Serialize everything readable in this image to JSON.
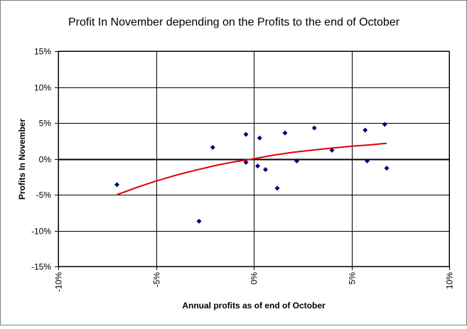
{
  "chart_data": {
    "type": "scatter",
    "title": "Profit In November depending on the Profits to the end of October",
    "xlabel": "Annual profits as of end of October",
    "ylabel": "Profits In November",
    "xlim": [
      -0.1,
      0.1
    ],
    "ylim": [
      -0.15,
      0.15
    ],
    "x_ticks": [
      -0.1,
      -0.05,
      0.0,
      0.05,
      0.1
    ],
    "x_tick_labels": [
      "-10%",
      "-5%",
      "0%",
      "5%",
      "10%"
    ],
    "y_ticks": [
      0.15,
      0.1,
      0.05,
      0.0,
      -0.05,
      -0.1,
      -0.15
    ],
    "y_tick_labels": [
      "15%",
      "10%",
      "5%",
      "0%",
      "-5%",
      "-10%",
      "-15%"
    ],
    "grid": true,
    "legend": "none",
    "colors": {
      "points": "#000080",
      "trend": "#e00000",
      "grid": "#000000",
      "zero_line": "#000000"
    },
    "points": [
      {
        "x": -0.07,
        "y": -0.036
      },
      {
        "x": -0.028,
        "y": -0.087
      },
      {
        "x": -0.021,
        "y": 0.016
      },
      {
        "x": -0.004,
        "y": 0.034
      },
      {
        "x": -0.004,
        "y": -0.005
      },
      {
        "x": 0.002,
        "y": -0.01
      },
      {
        "x": 0.003,
        "y": 0.029
      },
      {
        "x": 0.006,
        "y": -0.015
      },
      {
        "x": 0.012,
        "y": -0.041
      },
      {
        "x": 0.016,
        "y": 0.036
      },
      {
        "x": 0.022,
        "y": -0.003
      },
      {
        "x": 0.031,
        "y": 0.043
      },
      {
        "x": 0.04,
        "y": 0.012
      },
      {
        "x": 0.057,
        "y": 0.04
      },
      {
        "x": 0.058,
        "y": -0.003
      },
      {
        "x": 0.067,
        "y": 0.048
      },
      {
        "x": 0.068,
        "y": -0.013
      }
    ],
    "trendline": {
      "type": "polynomial",
      "x": [
        -0.07,
        -0.06,
        -0.05,
        -0.04,
        -0.03,
        -0.02,
        -0.01,
        0.0,
        0.01,
        0.02,
        0.03,
        0.04,
        0.05,
        0.06,
        0.068
      ],
      "y": [
        -0.05,
        -0.04,
        -0.031,
        -0.023,
        -0.016,
        -0.0095,
        -0.0042,
        0.0,
        0.005,
        0.009,
        0.0122,
        0.015,
        0.0175,
        0.0195,
        0.0217
      ]
    }
  }
}
